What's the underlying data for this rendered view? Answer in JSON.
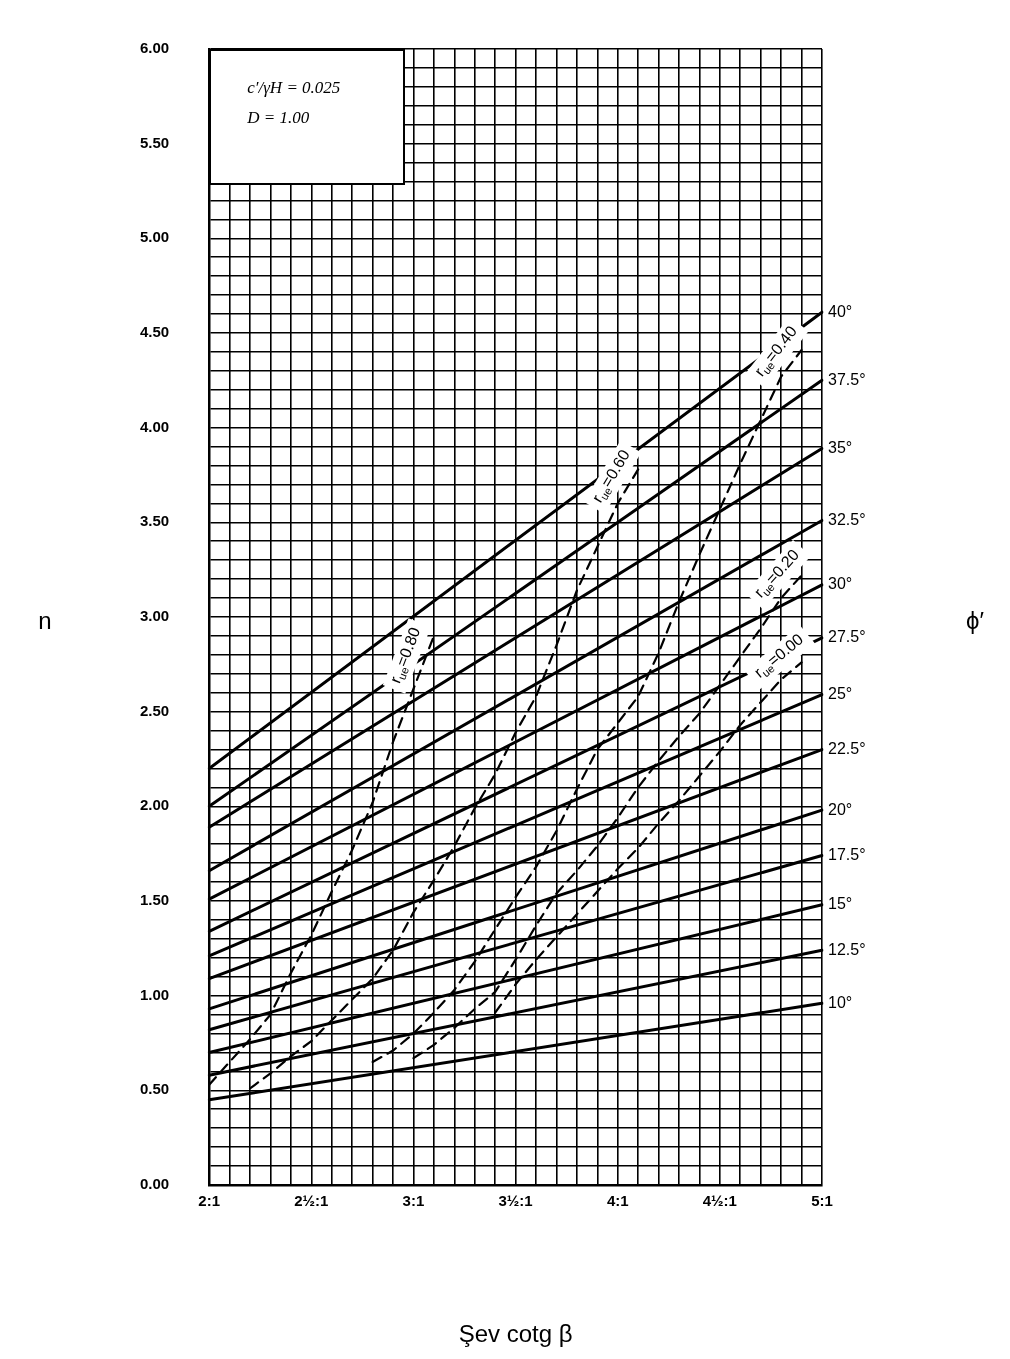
{
  "chart_data": {
    "type": "line",
    "ylabel": "n",
    "xlabel": "Şev cotg β",
    "legend_title": "ϕ′",
    "annotations": [
      "c′/γH = 0.025",
      "D = 1.00"
    ],
    "ylim": [
      0,
      6
    ],
    "grid": true,
    "legend": false,
    "marker": "none",
    "line_style": "solid",
    "categories": [
      "2:1",
      null,
      null,
      null,
      null,
      "2½:1",
      null,
      null,
      null,
      null,
      "3:1",
      null,
      null,
      null,
      null,
      "3½:1",
      null,
      null,
      null,
      null,
      "4:1",
      null,
      null,
      null,
      null,
      "4½:1",
      null,
      null,
      null,
      null,
      "5:1"
    ],
    "yticks": [
      {
        "value": 0,
        "label": "0.00"
      },
      {
        "value": 0.1,
        "label": null
      },
      {
        "value": 0.2,
        "label": null
      },
      {
        "value": 0.3,
        "label": null
      },
      {
        "value": 0.4,
        "label": null
      },
      {
        "value": 0.5,
        "label": "0.50"
      },
      {
        "value": 0.6,
        "label": null
      },
      {
        "value": 0.7,
        "label": null
      },
      {
        "value": 0.8,
        "label": null
      },
      {
        "value": 0.9,
        "label": null
      },
      {
        "value": 1,
        "label": "1.00"
      },
      {
        "value": 1.1,
        "label": null
      },
      {
        "value": 1.2,
        "label": null
      },
      {
        "value": 1.3,
        "label": null
      },
      {
        "value": 1.4,
        "label": null
      },
      {
        "value": 1.5,
        "label": "1.50"
      },
      {
        "value": 1.6,
        "label": null
      },
      {
        "value": 1.7,
        "label": null
      },
      {
        "value": 1.8,
        "label": null
      },
      {
        "value": 1.9,
        "label": null
      },
      {
        "value": 2,
        "label": "2.00"
      },
      {
        "value": 2.1,
        "label": null
      },
      {
        "value": 2.2,
        "label": null
      },
      {
        "value": 2.3,
        "label": null
      },
      {
        "value": 2.4,
        "label": null
      },
      {
        "value": 2.5,
        "label": "2.50"
      },
      {
        "value": 2.6,
        "label": null
      },
      {
        "value": 2.7,
        "label": null
      },
      {
        "value": 2.8,
        "label": null
      },
      {
        "value": 2.9,
        "label": null
      },
      {
        "value": 3,
        "label": "3.00"
      },
      {
        "value": 3.1,
        "label": null
      },
      {
        "value": 3.2,
        "label": null
      },
      {
        "value": 3.3,
        "label": null
      },
      {
        "value": 3.4,
        "label": null
      },
      {
        "value": 3.5,
        "label": "3.50"
      },
      {
        "value": 3.6,
        "label": null
      },
      {
        "value": 3.7,
        "label": null
      },
      {
        "value": 3.8,
        "label": null
      },
      {
        "value": 3.9,
        "label": null
      },
      {
        "value": 4,
        "label": "4.00"
      },
      {
        "value": 4.1,
        "label": null
      },
      {
        "value": 4.2,
        "label": null
      },
      {
        "value": 4.3,
        "label": null
      },
      {
        "value": 4.4,
        "label": null
      },
      {
        "value": 4.5,
        "label": "4.50"
      },
      {
        "value": 4.6,
        "label": null
      },
      {
        "value": 4.7,
        "label": null
      },
      {
        "value": 4.8,
        "label": null
      },
      {
        "value": 4.9,
        "label": null
      },
      {
        "value": 5,
        "label": "5.00"
      },
      {
        "value": 5.1,
        "label": null
      },
      {
        "value": 5.2,
        "label": null
      },
      {
        "value": 5.3,
        "label": null
      },
      {
        "value": 5.4,
        "label": null
      },
      {
        "value": 5.5,
        "label": "5.50"
      },
      {
        "value": 5.6,
        "label": null
      },
      {
        "value": 5.7,
        "label": null
      },
      {
        "value": 5.8,
        "label": null
      },
      {
        "value": 5.9,
        "label": null
      },
      {
        "value": 6,
        "label": "6.00"
      }
    ],
    "series": [
      {
        "name": "40°",
        "color": "#000000",
        "values": [
          2.2,
          null,
          null,
          null,
          null,
          null,
          null,
          null,
          null,
          null,
          null,
          null,
          null,
          null,
          null,
          null,
          null,
          null,
          null,
          null,
          null,
          null,
          null,
          null,
          null,
          null,
          null,
          null,
          null,
          null,
          4.61
        ]
      },
      {
        "name": "37.5°",
        "color": "#000000",
        "values": [
          2.0,
          null,
          null,
          null,
          null,
          null,
          null,
          null,
          null,
          null,
          null,
          null,
          null,
          null,
          null,
          null,
          null,
          null,
          null,
          null,
          null,
          null,
          null,
          null,
          null,
          null,
          null,
          null,
          null,
          null,
          4.25
        ]
      },
      {
        "name": "35°",
        "color": "#000000",
        "values": [
          1.89,
          null,
          null,
          null,
          null,
          null,
          null,
          null,
          null,
          null,
          null,
          null,
          null,
          null,
          null,
          null,
          null,
          null,
          null,
          null,
          null,
          null,
          null,
          null,
          null,
          null,
          null,
          null,
          null,
          null,
          3.89
        ]
      },
      {
        "name": "32.5°",
        "color": "#000000",
        "values": [
          1.66,
          null,
          null,
          null,
          null,
          null,
          null,
          null,
          null,
          null,
          null,
          null,
          null,
          null,
          null,
          null,
          null,
          null,
          null,
          null,
          null,
          null,
          null,
          null,
          null,
          null,
          null,
          null,
          null,
          null,
          3.51
        ]
      },
      {
        "name": "30°",
        "color": "#000000",
        "values": [
          1.51,
          null,
          null,
          null,
          null,
          null,
          null,
          null,
          null,
          null,
          null,
          null,
          null,
          null,
          null,
          null,
          null,
          null,
          null,
          null,
          null,
          null,
          null,
          null,
          null,
          null,
          null,
          null,
          null,
          null,
          3.17
        ]
      },
      {
        "name": "27.5°",
        "color": "#000000",
        "values": [
          1.34,
          null,
          null,
          null,
          null,
          null,
          null,
          null,
          null,
          null,
          null,
          null,
          null,
          null,
          null,
          null,
          null,
          null,
          null,
          null,
          null,
          null,
          null,
          null,
          null,
          null,
          null,
          null,
          null,
          null,
          2.89
        ]
      },
      {
        "name": "25°",
        "color": "#000000",
        "values": [
          1.21,
          null,
          null,
          null,
          null,
          null,
          null,
          null,
          null,
          null,
          null,
          null,
          null,
          null,
          null,
          null,
          null,
          null,
          null,
          null,
          null,
          null,
          null,
          null,
          null,
          null,
          null,
          null,
          null,
          null,
          2.59
        ]
      },
      {
        "name": "22.5°",
        "color": "#000000",
        "values": [
          1.09,
          null,
          null,
          null,
          null,
          null,
          null,
          null,
          null,
          null,
          null,
          null,
          null,
          null,
          null,
          null,
          null,
          null,
          null,
          null,
          null,
          null,
          null,
          null,
          null,
          null,
          null,
          null,
          null,
          null,
          2.3
        ]
      },
      {
        "name": "20°",
        "color": "#000000",
        "values": [
          0.93,
          null,
          null,
          null,
          null,
          null,
          null,
          null,
          null,
          null,
          null,
          null,
          null,
          null,
          null,
          null,
          null,
          null,
          null,
          null,
          null,
          null,
          null,
          null,
          null,
          null,
          null,
          null,
          null,
          null,
          1.98
        ]
      },
      {
        "name": "17.5°",
        "color": "#000000",
        "values": [
          0.82,
          null,
          null,
          null,
          null,
          null,
          null,
          null,
          null,
          null,
          null,
          null,
          null,
          null,
          null,
          null,
          null,
          null,
          null,
          null,
          null,
          null,
          null,
          null,
          null,
          null,
          null,
          null,
          null,
          null,
          1.74
        ]
      },
      {
        "name": "15°",
        "color": "#000000",
        "values": [
          0.7,
          null,
          null,
          null,
          null,
          null,
          null,
          null,
          null,
          null,
          null,
          null,
          null,
          null,
          null,
          null,
          null,
          null,
          null,
          null,
          null,
          null,
          null,
          null,
          null,
          null,
          null,
          null,
          null,
          null,
          1.48
        ]
      },
      {
        "name": "12.5°",
        "color": "#000000",
        "values": [
          0.58,
          null,
          null,
          null,
          null,
          null,
          null,
          null,
          null,
          null,
          null,
          null,
          null,
          null,
          null,
          null,
          null,
          null,
          null,
          null,
          null,
          null,
          null,
          null,
          null,
          null,
          null,
          null,
          null,
          null,
          1.24
        ]
      },
      {
        "name": "10°",
        "color": "#000000",
        "values": [
          0.45,
          null,
          null,
          null,
          null,
          null,
          null,
          null,
          null,
          null,
          null,
          null,
          null,
          null,
          null,
          null,
          null,
          null,
          null,
          null,
          null,
          null,
          null,
          null,
          null,
          null,
          null,
          null,
          null,
          null,
          0.96
        ]
      },
      {
        "name": "r$_{ue}$=0.80",
        "color": "#000000",
        "line_style": "dashed",
        "values": [
          0.53,
          0.65,
          0.77,
          0.9,
          1.12,
          1.32,
          1.55,
          1.77,
          2.02,
          2.34,
          2.62,
          2.9,
          null,
          null,
          null,
          null,
          null,
          null,
          null,
          null,
          null,
          null,
          null,
          null,
          null,
          null,
          null,
          null,
          null,
          null,
          null
        ]
      },
      {
        "name": "r$_{ue}$=0.60",
        "color": "#000000",
        "line_style": "dashed",
        "values": [
          null,
          null,
          0.51,
          0.59,
          0.68,
          0.76,
          0.87,
          0.98,
          1.09,
          1.24,
          1.44,
          1.61,
          1.79,
          1.99,
          2.17,
          2.39,
          2.58,
          2.85,
          3.14,
          3.37,
          3.6,
          3.78,
          null,
          null,
          null,
          null,
          null,
          null,
          null,
          null,
          null
        ]
      },
      {
        "name": "r$_{ue}$=0.40",
        "color": "#000000",
        "line_style": "dashed",
        "values": [
          null,
          null,
          null,
          null,
          null,
          null,
          null,
          null,
          0.65,
          0.71,
          0.8,
          0.91,
          1.03,
          1.18,
          1.35,
          1.52,
          1.68,
          1.87,
          2.09,
          2.3,
          2.44,
          2.58,
          2.81,
          3.08,
          3.33,
          3.57,
          3.81,
          4.04,
          4.27,
          4.41,
          null
        ]
      },
      {
        "name": "r$_{ue}$=0.20",
        "color": "#000000",
        "line_style": "dashed",
        "values": [
          null,
          null,
          null,
          null,
          null,
          null,
          null,
          null,
          null,
          null,
          0.67,
          0.74,
          0.83,
          0.93,
          1.02,
          1.19,
          1.37,
          1.54,
          1.66,
          1.79,
          1.94,
          2.1,
          2.24,
          2.37,
          2.49,
          2.64,
          2.79,
          2.94,
          3.1,
          3.22,
          null
        ]
      },
      {
        "name": "r$_{ue}$=0.00",
        "color": "#000000",
        "line_style": "dashed",
        "values": [
          null,
          null,
          null,
          null,
          null,
          null,
          null,
          null,
          null,
          null,
          null,
          null,
          null,
          null,
          0.91,
          1.06,
          1.19,
          1.31,
          1.43,
          1.55,
          1.67,
          1.78,
          1.91,
          2.03,
          2.16,
          2.29,
          2.43,
          2.55,
          2.67,
          2.76,
          null
        ]
      }
    ]
  }
}
